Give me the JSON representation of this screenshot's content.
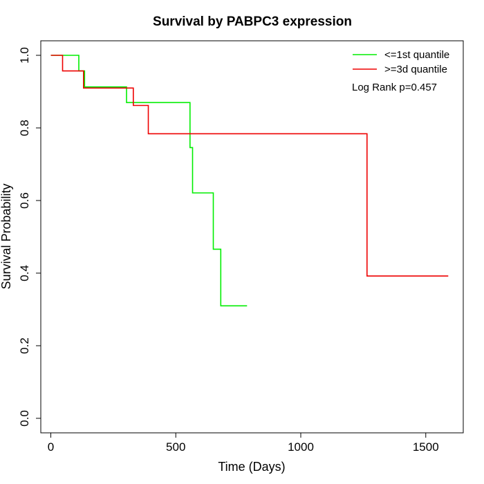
{
  "chart_data": {
    "type": "line",
    "title": "Survival by PABPC3 expression",
    "xlabel": "Time (Days)",
    "ylabel": "Survival Probability",
    "xlim": [
      -40,
      1650
    ],
    "ylim": [
      -0.04,
      1.04
    ],
    "xticks": [
      0,
      500,
      1000,
      1500
    ],
    "xtick_labels": [
      "0",
      "500",
      "1000",
      "1500"
    ],
    "yticks": [
      0.0,
      0.2,
      0.4,
      0.6,
      0.8,
      1.0
    ],
    "ytick_labels": [
      "0.0",
      "0.2",
      "0.4",
      "0.6",
      "0.8",
      "1.0"
    ],
    "grid": false,
    "legend_position": "top-right",
    "annotation": "Log Rank p=0.457",
    "series": [
      {
        "name": "<=1st quantile",
        "color": "#00ee00",
        "step_points": [
          [
            0,
            1.0
          ],
          [
            112,
            1.0
          ],
          [
            112,
            0.957
          ],
          [
            135,
            0.957
          ],
          [
            135,
            0.913
          ],
          [
            303,
            0.913
          ],
          [
            303,
            0.87
          ],
          [
            557,
            0.87
          ],
          [
            557,
            0.746
          ],
          [
            567,
            0.746
          ],
          [
            567,
            0.621
          ],
          [
            650,
            0.621
          ],
          [
            650,
            0.466
          ],
          [
            680,
            0.466
          ],
          [
            680,
            0.31
          ],
          [
            785,
            0.31
          ]
        ]
      },
      {
        "name": ">=3d quantile",
        "color": "#ee0000",
        "step_points": [
          [
            0,
            1.0
          ],
          [
            47,
            1.0
          ],
          [
            47,
            0.957
          ],
          [
            131,
            0.957
          ],
          [
            131,
            0.91
          ],
          [
            330,
            0.91
          ],
          [
            330,
            0.862
          ],
          [
            390,
            0.862
          ],
          [
            390,
            0.784
          ],
          [
            1265,
            0.784
          ],
          [
            1265,
            0.392
          ],
          [
            1590,
            0.392
          ]
        ]
      }
    ]
  }
}
